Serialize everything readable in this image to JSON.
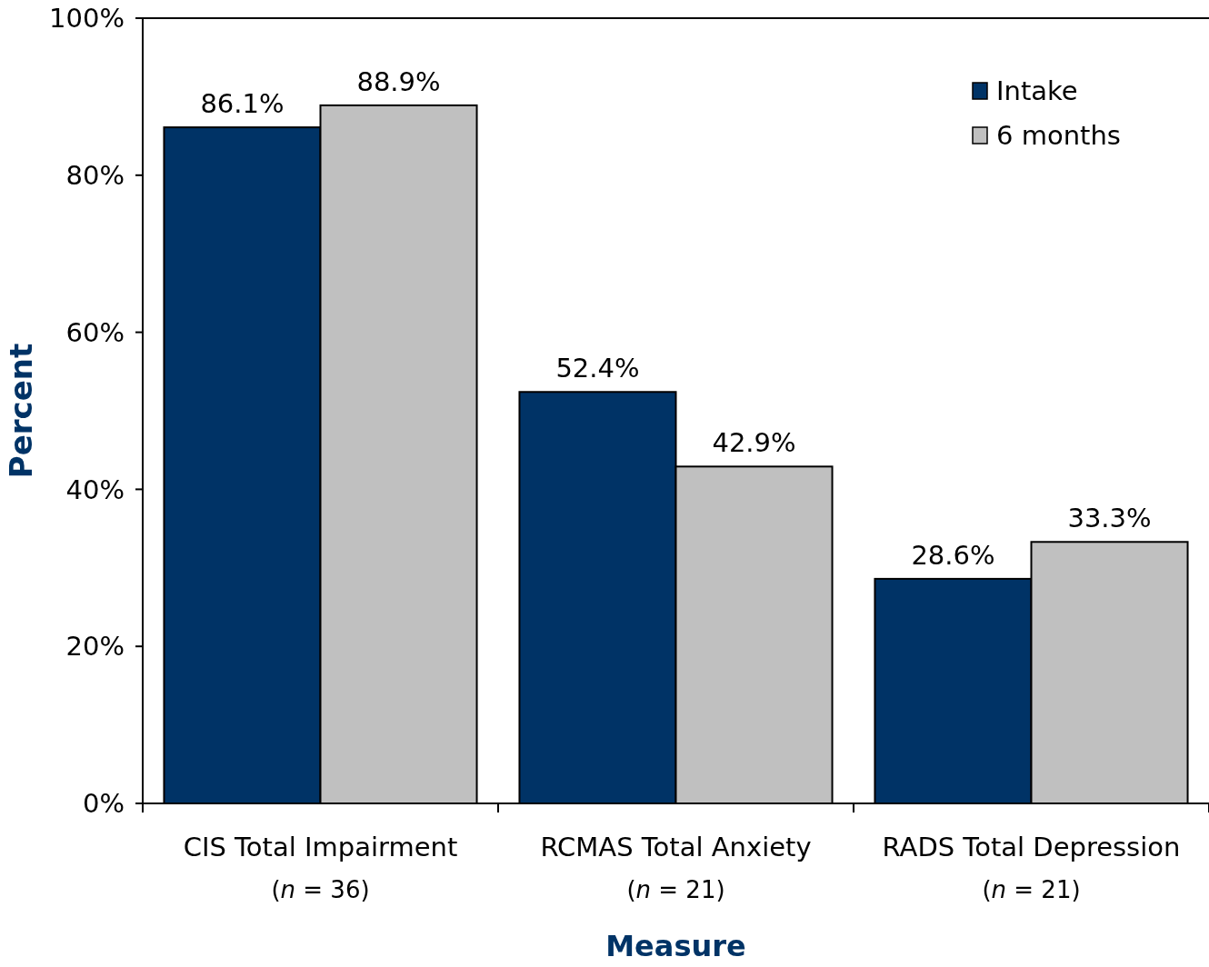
{
  "chart_data": {
    "type": "bar",
    "xlabel": "Measure",
    "ylabel": "Percent",
    "categories": [
      "CIS Total Impairment\n(n = 36)",
      "RCMAS Total Anxiety\n(n = 21)",
      "RADS Total Depression\n(n = 21)"
    ],
    "series": [
      {
        "name": "Intake",
        "color": "#003366",
        "values": [
          86.1,
          52.4,
          28.6
        ],
        "value_labels": [
          "86.1%",
          "52.4%",
          "28.6%"
        ]
      },
      {
        "name": "6 months",
        "color": "#c0c0c0",
        "values": [
          88.9,
          42.9,
          33.3
        ],
        "value_labels": [
          "88.9%",
          "42.9%",
          "33.3%"
        ]
      }
    ],
    "ylim": [
      0,
      100
    ],
    "yticks": [
      {
        "value": 0,
        "label": "0%"
      },
      {
        "value": 20,
        "label": "20%"
      },
      {
        "value": 40,
        "label": "40%"
      },
      {
        "value": 60,
        "label": "60%"
      },
      {
        "value": 80,
        "label": "80%"
      },
      {
        "value": 100,
        "label": "100%"
      }
    ],
    "grid": false,
    "legend": "top right"
  }
}
